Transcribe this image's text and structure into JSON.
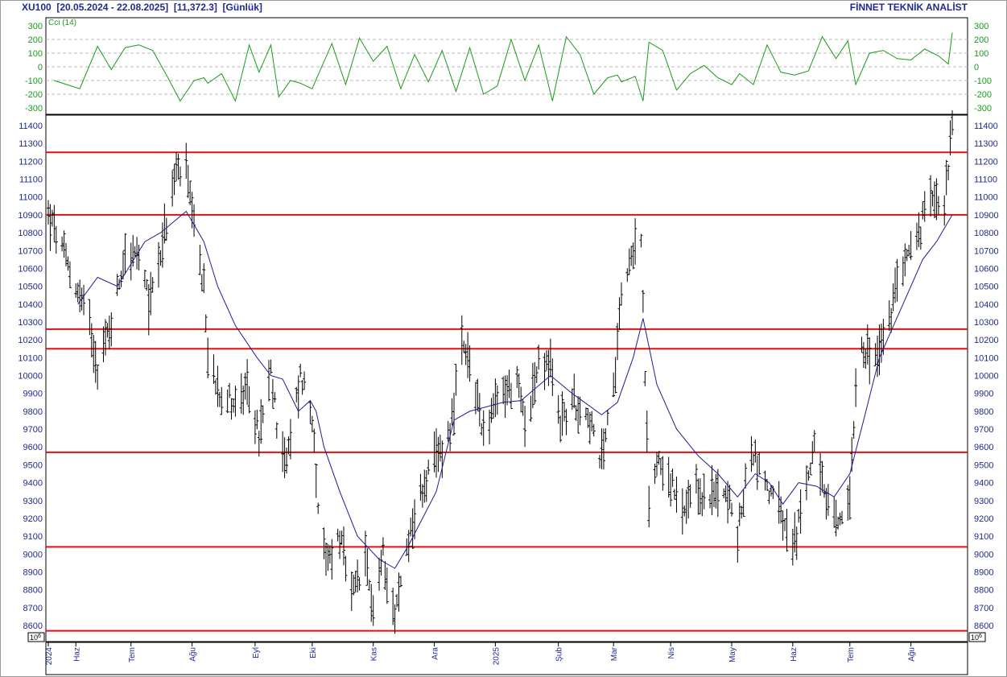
{
  "header": {
    "symbol": "XU100",
    "range": "[20.05.2024 - 22.08.2025]",
    "last": "[11,372.3]",
    "period": "[Günlük]",
    "provider": "FİNNET TEKNİK ANALİST"
  },
  "colors": {
    "cci": "#1a9a1a",
    "ma": "#1c1c9c",
    "bars": "#000000",
    "levels": "#e01010",
    "axis_text": "#1f2a8f",
    "grid": "#b8b8b8"
  },
  "chart_data": [
    {
      "type": "line",
      "name_label": "Cci (14)",
      "ylim": [
        -300,
        300
      ],
      "yticks": [
        300,
        200,
        100,
        0,
        -100,
        -200,
        -300
      ],
      "grid": true,
      "x": [
        "2024-05-23",
        "2024-06-05",
        "2024-06-14",
        "2024-06-21",
        "2024-06-28",
        "2024-07-05",
        "2024-07-12",
        "2024-07-19",
        "2024-07-26",
        "2024-08-02",
        "2024-08-07",
        "2024-08-09",
        "2024-08-16",
        "2024-08-23",
        "2024-08-30",
        "2024-09-04",
        "2024-09-10",
        "2024-09-14",
        "2024-09-20",
        "2024-09-25",
        "2024-10-01",
        "2024-10-04",
        "2024-10-11",
        "2024-10-18",
        "2024-10-25",
        "2024-11-01",
        "2024-11-08",
        "2024-11-15",
        "2024-11-22",
        "2024-11-29",
        "2024-12-06",
        "2024-12-13",
        "2024-12-20",
        "2024-12-27",
        "2025-01-03",
        "2025-01-10",
        "2025-01-17",
        "2025-01-24",
        "2025-01-31",
        "2025-02-07",
        "2025-02-14",
        "2025-02-21",
        "2025-02-28",
        "2025-03-05",
        "2025-03-07",
        "2025-03-14",
        "2025-03-18",
        "2025-03-21",
        "2025-03-28",
        "2025-04-04",
        "2025-04-11",
        "2025-04-18",
        "2025-04-25",
        "2025-05-02",
        "2025-05-06",
        "2025-05-13",
        "2025-05-20",
        "2025-05-27",
        "2025-06-03",
        "2025-06-10",
        "2025-06-17",
        "2025-06-24",
        "2025-06-30",
        "2025-07-04",
        "2025-07-11",
        "2025-07-18",
        "2025-07-25",
        "2025-08-01",
        "2025-08-08",
        "2025-08-15",
        "2025-08-20",
        "2025-08-22"
      ],
      "series": [
        {
          "values": [
            -100,
            -160,
            150,
            -20,
            140,
            160,
            120,
            -60,
            -250,
            -100,
            -80,
            -120,
            -50,
            -250,
            160,
            -40,
            160,
            -220,
            -100,
            -120,
            -160,
            -60,
            170,
            -130,
            210,
            40,
            150,
            -160,
            90,
            -110,
            120,
            -180,
            140,
            -200,
            -140,
            200,
            -100,
            160,
            -250,
            220,
            90,
            -200,
            -80,
            -60,
            -110,
            -70,
            -250,
            180,
            120,
            -170,
            -50,
            10,
            -80,
            -130,
            -50,
            -130,
            160,
            -40,
            -60,
            -30,
            220,
            60,
            190,
            -130,
            100,
            120,
            60,
            50,
            130,
            80,
            20,
            250
          ]
        }
      ]
    },
    {
      "type": "ohlc",
      "ylim": [
        8560,
        11440
      ],
      "yticks": [
        11400,
        11300,
        11200,
        11100,
        11000,
        10900,
        10800,
        10700,
        10600,
        10500,
        10400,
        10300,
        10200,
        10100,
        10000,
        9900,
        9800,
        9700,
        9600,
        9500,
        9400,
        9300,
        9200,
        9100,
        9000,
        8900,
        8800,
        8700,
        8600
      ],
      "scale_label": "10^6",
      "x_start": "2024-05-20",
      "x_end": "2025-08-22",
      "month_ticks": [
        "2024",
        "Haz",
        "Tem",
        "Ağu",
        "Eyl",
        "Eki",
        "Kas",
        "Ara",
        "2025",
        "Şub",
        "Mar",
        "Nis",
        "May",
        "Haz",
        "Tem",
        "Ağu"
      ],
      "month_dates": [
        "2024-05-20",
        "2024-06-03",
        "2024-07-01",
        "2024-08-01",
        "2024-09-02",
        "2024-10-01",
        "2024-11-01",
        "2024-12-02",
        "2025-01-02",
        "2025-02-03",
        "2025-03-03",
        "2025-04-01",
        "2025-05-02",
        "2025-06-02",
        "2025-07-01",
        "2025-08-01"
      ],
      "levels": [
        11250,
        10900,
        10260,
        10150,
        9570,
        9040,
        8570
      ],
      "anchors": [
        [
          "2024-05-20",
          10900
        ],
        [
          "2024-05-27",
          10700
        ],
        [
          "2024-06-03",
          10500
        ],
        [
          "2024-06-10",
          10300
        ],
        [
          "2024-06-14",
          10050
        ],
        [
          "2024-06-21",
          10300
        ],
        [
          "2024-06-28",
          10700
        ],
        [
          "2024-07-05",
          10650
        ],
        [
          "2024-07-10",
          10400
        ],
        [
          "2024-07-19",
          10850
        ],
        [
          "2024-07-24",
          11150
        ],
        [
          "2024-07-29",
          11150
        ],
        [
          "2024-08-02",
          10800
        ],
        [
          "2024-08-07",
          10500
        ],
        [
          "2024-08-09",
          10100
        ],
        [
          "2024-08-16",
          9900
        ],
        [
          "2024-08-23",
          9850
        ],
        [
          "2024-08-30",
          9900
        ],
        [
          "2024-09-04",
          9650
        ],
        [
          "2024-09-10",
          10000
        ],
        [
          "2024-09-13",
          9750
        ],
        [
          "2024-09-18",
          9500
        ],
        [
          "2024-09-25",
          10000
        ],
        [
          "2024-09-27",
          9950
        ],
        [
          "2024-10-02",
          9700
        ],
        [
          "2024-10-04",
          9200
        ],
        [
          "2024-10-08",
          8950
        ],
        [
          "2024-10-15",
          9100
        ],
        [
          "2024-10-21",
          8750
        ],
        [
          "2024-10-28",
          8950
        ],
        [
          "2024-11-01",
          8700
        ],
        [
          "2024-11-06",
          9000
        ],
        [
          "2024-11-12",
          8650
        ],
        [
          "2024-11-19",
          9100
        ],
        [
          "2024-11-27",
          9400
        ],
        [
          "2024-12-04",
          9550
        ],
        [
          "2024-12-10",
          9700
        ],
        [
          "2024-12-16",
          10150
        ],
        [
          "2024-12-20",
          10050
        ],
        [
          "2024-12-27",
          9700
        ],
        [
          "2025-01-06",
          9900
        ],
        [
          "2025-01-13",
          9950
        ],
        [
          "2025-01-17",
          9750
        ],
        [
          "2025-01-24",
          10050
        ],
        [
          "2025-01-30",
          10050
        ],
        [
          "2025-02-04",
          9750
        ],
        [
          "2025-02-11",
          9850
        ],
        [
          "2025-02-18",
          9800
        ],
        [
          "2025-02-24",
          9500
        ],
        [
          "2025-03-03",
          9900
        ],
        [
          "2025-03-06",
          10400
        ],
        [
          "2025-03-11",
          10650
        ],
        [
          "2025-03-17",
          10800
        ],
        [
          "2025-03-19",
          9950
        ],
        [
          "2025-03-21",
          9300
        ],
        [
          "2025-03-26",
          9550
        ],
        [
          "2025-04-01",
          9400
        ],
        [
          "2025-04-07",
          9200
        ],
        [
          "2025-04-14",
          9350
        ],
        [
          "2025-04-21",
          9300
        ],
        [
          "2025-04-28",
          9400
        ],
        [
          "2025-05-05",
          9100
        ],
        [
          "2025-05-12",
          9600
        ],
        [
          "2025-05-19",
          9400
        ],
        [
          "2025-05-26",
          9250
        ],
        [
          "2025-06-02",
          9000
        ],
        [
          "2025-06-09",
          9400
        ],
        [
          "2025-06-13",
          9650
        ],
        [
          "2025-06-18",
          9300
        ],
        [
          "2025-06-25",
          9150
        ],
        [
          "2025-07-01",
          9350
        ],
        [
          "2025-07-04",
          9950
        ],
        [
          "2025-07-07",
          10200
        ],
        [
          "2025-07-11",
          10100
        ],
        [
          "2025-07-15",
          10100
        ],
        [
          "2025-07-21",
          10300
        ],
        [
          "2025-07-28",
          10650
        ],
        [
          "2025-08-04",
          10750
        ],
        [
          "2025-08-08",
          10900
        ],
        [
          "2025-08-12",
          11050
        ],
        [
          "2025-08-18",
          10950
        ],
        [
          "2025-08-20",
          11200
        ],
        [
          "2025-08-22",
          11380
        ]
      ],
      "series": [
        {
          "type": "ma",
          "points": [
            [
              "2024-06-04",
              10400
            ],
            [
              "2024-06-14",
              10550
            ],
            [
              "2024-06-24",
              10500
            ],
            [
              "2024-07-08",
              10750
            ],
            [
              "2024-07-16",
              10800
            ],
            [
              "2024-07-29",
              10920
            ],
            [
              "2024-08-07",
              10750
            ],
            [
              "2024-08-14",
              10500
            ],
            [
              "2024-08-23",
              10280
            ],
            [
              "2024-09-03",
              10100
            ],
            [
              "2024-09-10",
              10000
            ],
            [
              "2024-09-16",
              9980
            ],
            [
              "2024-09-24",
              9800
            ],
            [
              "2024-09-30",
              9860
            ],
            [
              "2024-10-03",
              9800
            ],
            [
              "2024-10-07",
              9600
            ],
            [
              "2024-10-15",
              9350
            ],
            [
              "2024-10-24",
              9100
            ],
            [
              "2024-11-04",
              8970
            ],
            [
              "2024-11-12",
              8920
            ],
            [
              "2024-11-19",
              9050
            ],
            [
              "2024-12-03",
              9350
            ],
            [
              "2024-12-12",
              9750
            ],
            [
              "2024-12-20",
              9800
            ],
            [
              "2025-01-06",
              9850
            ],
            [
              "2025-01-15",
              9860
            ],
            [
              "2025-01-30",
              10000
            ],
            [
              "2025-02-10",
              9900
            ],
            [
              "2025-02-25",
              9780
            ],
            [
              "2025-03-05",
              9850
            ],
            [
              "2025-03-13",
              10100
            ],
            [
              "2025-03-18",
              10320
            ],
            [
              "2025-03-25",
              9950
            ],
            [
              "2025-04-04",
              9700
            ],
            [
              "2025-04-15",
              9550
            ],
            [
              "2025-04-25",
              9450
            ],
            [
              "2025-05-05",
              9320
            ],
            [
              "2025-05-14",
              9450
            ],
            [
              "2025-05-21",
              9400
            ],
            [
              "2025-05-28",
              9280
            ],
            [
              "2025-06-05",
              9400
            ],
            [
              "2025-06-14",
              9380
            ],
            [
              "2025-06-23",
              9320
            ],
            [
              "2025-07-01",
              9450
            ],
            [
              "2025-07-08",
              9750
            ],
            [
              "2025-07-16",
              10100
            ],
            [
              "2025-07-28",
              10400
            ],
            [
              "2025-08-07",
              10650
            ],
            [
              "2025-08-14",
              10750
            ],
            [
              "2025-08-22",
              10900
            ]
          ]
        }
      ]
    }
  ]
}
